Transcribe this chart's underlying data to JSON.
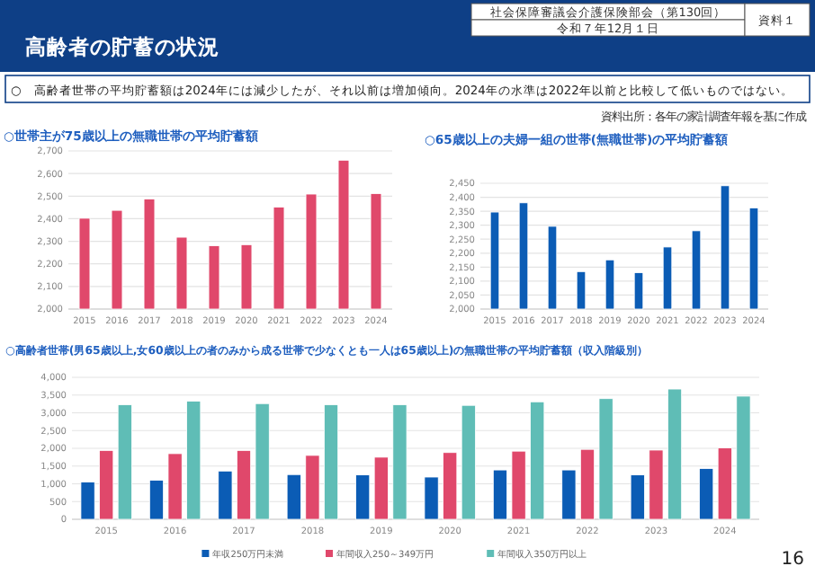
{
  "chart_data": [
    {
      "type": "other",
      "title": "高齢者の貯蓄の状況",
      "annotations": [
        "社会保障審議会介護保険部会（第130回）",
        "令和７年12月１日",
        "資料１",
        "○　高齢者世帯の平均貯蓄額は2024年には減少したが、それ以前は増加傾向。2024年の水準は2022年以前と比較して低いものではない。",
        "資料出所：各年の家計調査年報を基に作成",
        "16"
      ]
    },
    {
      "type": "bar",
      "title": "○世帯主が75歳以上の無職世帯の平均貯蓄額",
      "categories": [
        "2015",
        "2016",
        "2017",
        "2018",
        "2019",
        "2020",
        "2021",
        "2022",
        "2023",
        "2024"
      ],
      "color": "#e0486b",
      "values": [
        2402,
        2437,
        2487,
        2318,
        2280,
        2285,
        2451,
        2509,
        2659,
        2511
      ],
      "ylim": [
        2000,
        2700
      ],
      "yticks": [
        {
          "value": 2000,
          "label": "2,000"
        },
        {
          "value": 2100,
          "label": "2,100"
        },
        {
          "value": 2200,
          "label": "2,200"
        },
        {
          "value": 2300,
          "label": "2,300"
        },
        {
          "value": 2400,
          "label": "2,400"
        },
        {
          "value": 2500,
          "label": "2,500"
        },
        {
          "value": 2600,
          "label": "2,600"
        },
        {
          "value": 2700,
          "label": "2,700"
        }
      ],
      "grid": "y"
    },
    {
      "type": "bar",
      "title": "○65歳以上の夫婦一組の世帯(無職世帯)の平均貯蓄額",
      "categories": [
        "2015",
        "2016",
        "2017",
        "2018",
        "2019",
        "2020",
        "2021",
        "2022",
        "2023",
        "2024"
      ],
      "color": "#0b5cb5",
      "values": [
        2347,
        2380,
        2296,
        2134,
        2176,
        2130,
        2222,
        2280,
        2441,
        2362
      ],
      "ylim": [
        2000,
        2450
      ],
      "yticks": [
        {
          "value": 2000,
          "label": "2,000"
        },
        {
          "value": 2050,
          "label": "2,050"
        },
        {
          "value": 2100,
          "label": "2,100"
        },
        {
          "value": 2150,
          "label": "2,150"
        },
        {
          "value": 2200,
          "label": "2,200"
        },
        {
          "value": 2250,
          "label": "2,250"
        },
        {
          "value": 2300,
          "label": "2,300"
        },
        {
          "value": 2350,
          "label": "2,350"
        },
        {
          "value": 2400,
          "label": "2,400"
        },
        {
          "value": 2450,
          "label": "2,450"
        }
      ],
      "grid": "y"
    },
    {
      "type": "bar",
      "title": "○高齢者世帯(男65歳以上,女60歳以上の者のみから成る世帯で少なくとも一人は65歳以上)の無職世帯の平均貯蓄額（収入階級別）",
      "categories": [
        "2015",
        "2016",
        "2017",
        "2018",
        "2019",
        "2020",
        "2021",
        "2022",
        "2023",
        "2024"
      ],
      "series": [
        {
          "name": "年収250万円未満",
          "color": "#0b5cb5",
          "values": [
            1050,
            1100,
            1360,
            1260,
            1250,
            1190,
            1390,
            1390,
            1250,
            1430
          ]
        },
        {
          "name": "年間収入250～349万円",
          "color": "#e0486b",
          "values": [
            1940,
            1850,
            1940,
            1800,
            1750,
            1880,
            1920,
            1970,
            1950,
            2010
          ]
        },
        {
          "name": "年間収入350万円以上",
          "color": "#5fbdb6",
          "values": [
            3230,
            3330,
            3260,
            3230,
            3230,
            3210,
            3310,
            3400,
            3670,
            3470
          ]
        }
      ],
      "ylim": [
        0,
        4000
      ],
      "yticks": [
        0,
        {
          "value": 500,
          "label": "500"
        },
        {
          "value": 1000,
          "label": "1,000"
        },
        {
          "value": 1500,
          "label": "1,500"
        },
        {
          "value": 2000,
          "label": "2,000"
        },
        {
          "value": 2500,
          "label": "2,500"
        },
        {
          "value": 3000,
          "label": "3,000"
        },
        {
          "value": 3500,
          "label": "3,500"
        },
        {
          "value": 4000,
          "label": "4,000"
        }
      ],
      "grid": "y",
      "legend": "bottom"
    }
  ]
}
